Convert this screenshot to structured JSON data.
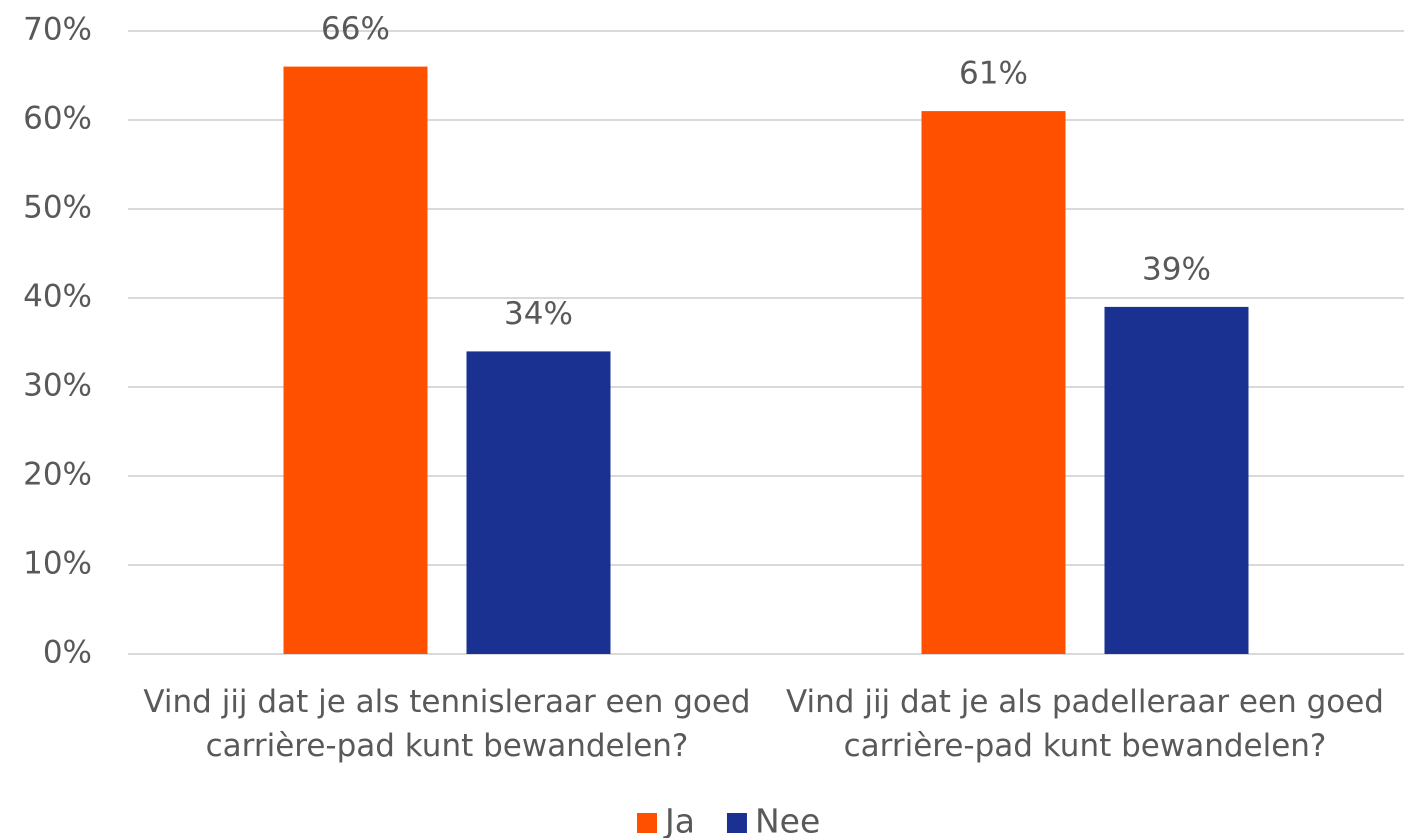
{
  "chart_data": {
    "type": "bar",
    "categories": [
      "Vind jij dat je als tennisleraar een goed carrière-pad kunt bewandelen?",
      "Vind jij dat je als padelleraar een goed carrière-pad kunt bewandelen?"
    ],
    "series": [
      {
        "name": "Ja",
        "color": "#ff5000",
        "values": [
          66,
          61
        ],
        "value_labels": [
          "66%",
          "61%"
        ]
      },
      {
        "name": "Nee",
        "color": "#1a3192",
        "values": [
          34,
          39
        ],
        "value_labels": [
          "34%",
          "39%"
        ]
      }
    ],
    "ylim": [
      0,
      70
    ],
    "yticks": [
      {
        "value": 0,
        "label": "0%"
      },
      {
        "value": 10,
        "label": "10%"
      },
      {
        "value": 20,
        "label": "20%"
      },
      {
        "value": 30,
        "label": "30%"
      },
      {
        "value": 40,
        "label": "40%"
      },
      {
        "value": 50,
        "label": "50%"
      },
      {
        "value": 60,
        "label": "60%"
      },
      {
        "value": 70,
        "label": "70%"
      }
    ],
    "grid": true,
    "legend": "bottom"
  }
}
